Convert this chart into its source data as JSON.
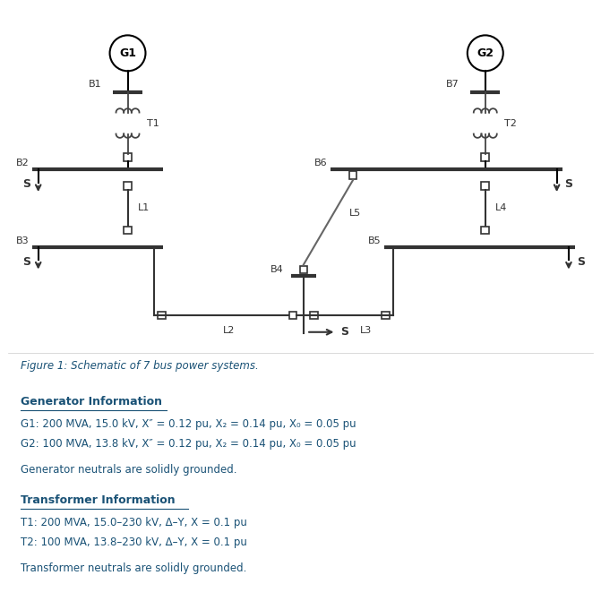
{
  "title": "Figure 1: Schematic of 7 bus power systems.",
  "title_color": "#1a5276",
  "bg_color": "#ffffff",
  "text_color": "#1a5276",
  "line_color": "#333333",
  "gen_info_header": "Generator Information",
  "gen_info_lines": [
    "G1: 200 MVA, 15.0 kV, X″ = 0.12 pu, X₂ = 0.14 pu, X₀ = 0.05 pu",
    "G2: 100 MVA, 13.8 kV, X″ = 0.12 pu, X₂ = 0.14 pu, X₀ = 0.05 pu"
  ],
  "gen_neutral": "Generator neutrals are solidly grounded.",
  "tx_info_header": "Transformer Information",
  "tx_info_lines": [
    "T1: 200 MVA, 15.0–230 kV, Δ–Y, X = 0.1 pu",
    "T2: 100 MVA, 13.8–230 kV, Δ–Y, X = 0.1 pu"
  ],
  "tx_neutral": "Transformer neutrals are solidly grounded.",
  "figsize": [
    6.71,
    6.71
  ],
  "dpi": 100
}
